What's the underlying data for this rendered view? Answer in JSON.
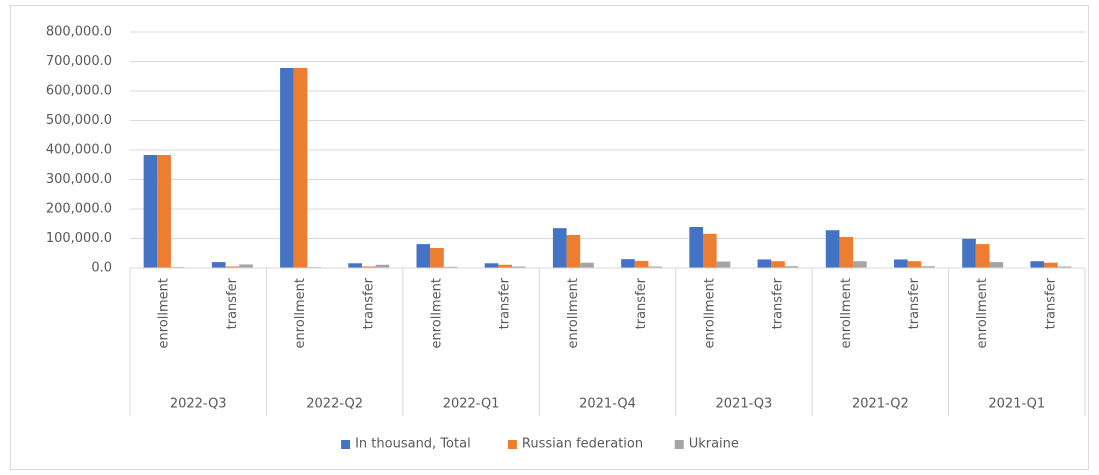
{
  "chart_data": {
    "type": "bar",
    "categories": [
      "enrollment",
      "transfer",
      "enrollment",
      "transfer",
      "enrollment",
      "transfer",
      "enrollment",
      "transfer",
      "enrollment",
      "transfer",
      "enrollment",
      "transfer",
      "enrollment",
      "transfer"
    ],
    "groups": [
      "2022-Q3",
      "2022-Q2",
      "2022-Q1",
      "2021-Q4",
      "2021-Q3",
      "2021-Q2",
      "2021-Q1"
    ],
    "series": [
      {
        "name": "In thousand, Total",
        "color": "#4472c4",
        "values": [
          383000,
          20000,
          678000,
          16000,
          81000,
          16000,
          135000,
          30000,
          139000,
          29000,
          128000,
          29000,
          99000,
          23000
        ]
      },
      {
        "name": "Russian federation",
        "color": "#ed7d31",
        "values": [
          383000,
          5000,
          678000,
          5000,
          68000,
          11000,
          112000,
          24000,
          116000,
          23000,
          105000,
          23000,
          81000,
          18000
        ]
      },
      {
        "name": "Ukraine",
        "color": "#a5a5a5",
        "values": [
          3000,
          12000,
          3000,
          11000,
          4000,
          5000,
          18000,
          5000,
          22000,
          6000,
          23000,
          6000,
          20000,
          5000
        ]
      }
    ],
    "ylim": [
      0,
      800000
    ],
    "yticks": [
      {
        "value": 0,
        "label": "0.0"
      },
      {
        "value": 100000,
        "label": "100,000.0"
      },
      {
        "value": 200000,
        "label": "200,000.0"
      },
      {
        "value": 300000,
        "label": "300,000.0"
      },
      {
        "value": 400000,
        "label": "400,000.0"
      },
      {
        "value": 500000,
        "label": "500,000.0"
      },
      {
        "value": 600000,
        "label": "600,000.0"
      },
      {
        "value": 700000,
        "label": "700,000.0"
      },
      {
        "value": 800000,
        "label": "800,000.0"
      }
    ],
    "grid": true,
    "legend": "bottom"
  }
}
